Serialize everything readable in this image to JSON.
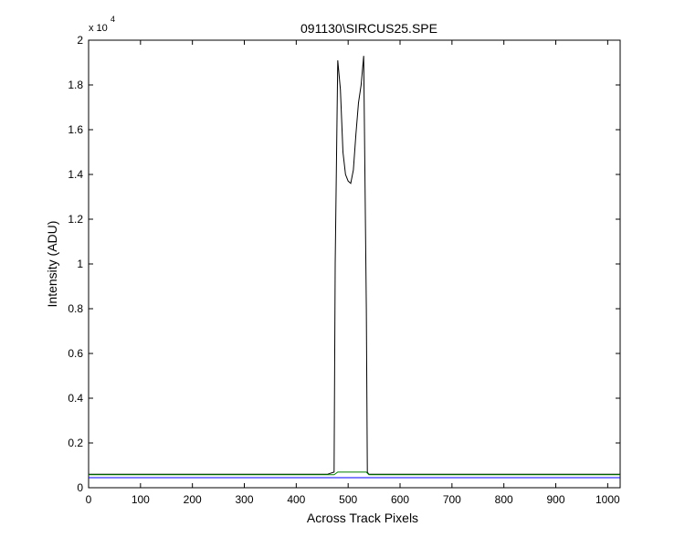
{
  "chart_data": {
    "type": "line",
    "title": "091130\\SIRCUS25.SPE",
    "xlabel": "Across Track Pixels",
    "ylabel": "Intensity (ADU)",
    "y_exponent_label": "x 10",
    "y_exponent_power": "4",
    "xlim": [
      0,
      1024
    ],
    "ylim": [
      0,
      2
    ],
    "y_scale_factor": 10000,
    "xticks": [
      0,
      100,
      200,
      300,
      400,
      500,
      600,
      700,
      800,
      900,
      1000
    ],
    "xtick_labels": [
      "0",
      "100",
      "200",
      "300",
      "400",
      "500",
      "600",
      "700",
      "800",
      "900",
      "1000"
    ],
    "yticks": [
      0,
      0.2,
      0.4,
      0.6,
      0.8,
      1,
      1.2,
      1.4,
      1.6,
      1.8,
      2
    ],
    "ytick_labels": [
      "0",
      "0.2",
      "0.4",
      "0.6",
      "0.8",
      "1",
      "1.2",
      "1.4",
      "1.6",
      "1.8",
      "2"
    ],
    "grid": false,
    "series": [
      {
        "color": "#000000",
        "x": [
          0,
          100,
          200,
          300,
          400,
          460,
          473,
          475,
          480,
          485,
          490,
          495,
          500,
          505,
          510,
          515,
          520,
          525,
          530,
          535,
          537,
          540,
          600,
          700,
          800,
          900,
          1024
        ],
        "y": [
          0.06,
          0.06,
          0.06,
          0.06,
          0.06,
          0.06,
          0.07,
          1.0,
          1.91,
          1.78,
          1.5,
          1.4,
          1.37,
          1.36,
          1.42,
          1.58,
          1.72,
          1.8,
          1.93,
          0.8,
          0.07,
          0.06,
          0.06,
          0.06,
          0.06,
          0.06,
          0.06
        ]
      },
      {
        "color": "#008000",
        "x": [
          0,
          200,
          400,
          473,
          480,
          500,
          520,
          535,
          540,
          700,
          900,
          1024
        ],
        "y": [
          0.058,
          0.058,
          0.058,
          0.058,
          0.07,
          0.07,
          0.07,
          0.07,
          0.058,
          0.058,
          0.058,
          0.058
        ]
      },
      {
        "color": "#0000ff",
        "x": [
          0,
          100,
          200,
          300,
          400,
          500,
          600,
          700,
          800,
          900,
          1024
        ],
        "y": [
          0.045,
          0.045,
          0.045,
          0.045,
          0.045,
          0.045,
          0.045,
          0.045,
          0.045,
          0.045,
          0.045
        ]
      }
    ]
  }
}
